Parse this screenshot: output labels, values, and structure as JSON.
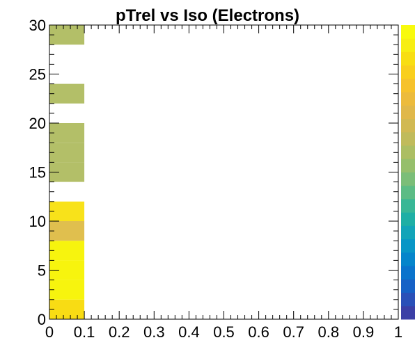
{
  "chart_data": {
    "type": "heatmap",
    "title": "pTrel vs Iso (Electrons)",
    "xlabel": "",
    "ylabel": "",
    "xlim": [
      0,
      1
    ],
    "ylim": [
      0,
      30
    ],
    "x_bin_width": 0.1,
    "y_bin_width": 2,
    "x_ticks": [
      "0",
      "0.1",
      "0.2",
      "0.3",
      "0.4",
      "0.5",
      "0.6",
      "0.7",
      "0.8",
      "0.9",
      "1"
    ],
    "y_ticks": [
      "0",
      "5",
      "10",
      "15",
      "20",
      "25",
      "30"
    ],
    "grid": false,
    "colorbar": true,
    "palette": [
      "#3b3fa6",
      "#2a50b8",
      "#1661c6",
      "#0a73cc",
      "#0585cb",
      "#0896c6",
      "#12a4b8",
      "#1eafa5",
      "#38b796",
      "#5cbc85",
      "#7bbe78",
      "#96bf6c",
      "#acbe63",
      "#c0bb5b",
      "#d1b953",
      "#e0b84a",
      "#ecbb3c",
      "#f6c22c",
      "#f9cf1d",
      "#f8de13",
      "#f7ee13",
      "#f8fa0d"
    ],
    "cells": [
      {
        "x": 0.0,
        "y": 0,
        "color": "#f8dc14"
      },
      {
        "x": 0.0,
        "y": 2,
        "color": "#f7f40e"
      },
      {
        "x": 0.0,
        "y": 4,
        "color": "#f7f40e"
      },
      {
        "x": 0.0,
        "y": 6,
        "color": "#f7f40e"
      },
      {
        "x": 0.0,
        "y": 8,
        "color": "#e0bf4e"
      },
      {
        "x": 0.0,
        "y": 10,
        "color": "#f8e21a"
      },
      {
        "x": 0.0,
        "y": 14,
        "color": "#b3bf68"
      },
      {
        "x": 0.0,
        "y": 16,
        "color": "#b3bf68"
      },
      {
        "x": 0.0,
        "y": 18,
        "color": "#b3bf68"
      },
      {
        "x": 0.0,
        "y": 22,
        "color": "#b3bf68"
      },
      {
        "x": 0.0,
        "y": 28,
        "color": "#b3bf68"
      }
    ]
  }
}
